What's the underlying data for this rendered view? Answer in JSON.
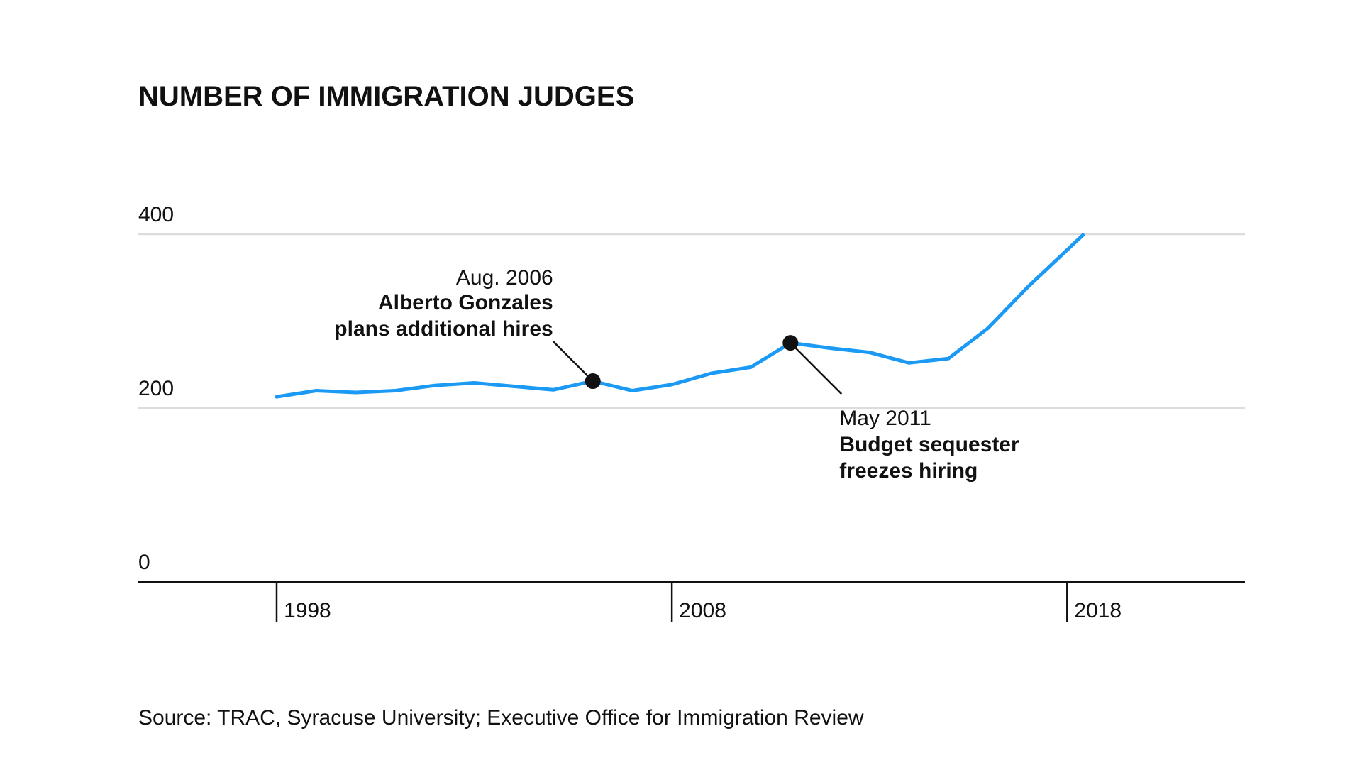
{
  "chart_data": {
    "type": "line",
    "title": "NUMBER OF IMMIGRATION JUDGES",
    "xlabel": "",
    "ylabel": "",
    "xlim": [
      1994.5,
      2022.5
    ],
    "ylim": [
      0,
      400
    ],
    "y_ticks": [
      {
        "value": 0,
        "label": "0"
      },
      {
        "value": 200,
        "label": "200"
      },
      {
        "value": 400,
        "label": "400"
      }
    ],
    "x_ticks": [
      {
        "value": 1998,
        "label": "1998"
      },
      {
        "value": 2008,
        "label": "2008"
      },
      {
        "value": 2018,
        "label": "2018"
      }
    ],
    "grid": true,
    "legend": "none",
    "series": [
      {
        "color": "#1a9af5",
        "x": [
          1998,
          1999,
          2000,
          2001,
          2002,
          2003,
          2004,
          2005,
          2006,
          2007,
          2008,
          2009,
          2010,
          2011,
          2012,
          2013,
          2014,
          2015,
          2016,
          2017,
          2018.4
        ],
        "y": [
          213,
          220,
          218,
          220,
          226,
          229,
          225,
          221,
          231,
          220,
          227,
          240,
          247,
          275,
          269,
          264,
          252,
          257,
          292,
          339,
          399
        ]
      }
    ],
    "annotations": [
      {
        "x": 2006,
        "y": 231,
        "date": "Aug. 2006",
        "lines": [
          "Alberto Gonzales",
          "plans additional hires"
        ],
        "align": "end"
      },
      {
        "x": 2011,
        "y": 275,
        "date": "May 2011",
        "lines": [
          "Budget sequester",
          "freezes hiring"
        ],
        "align": "start"
      }
    ],
    "source": "Source: TRAC, Syracuse University; Executive Office for Immigration Review"
  }
}
